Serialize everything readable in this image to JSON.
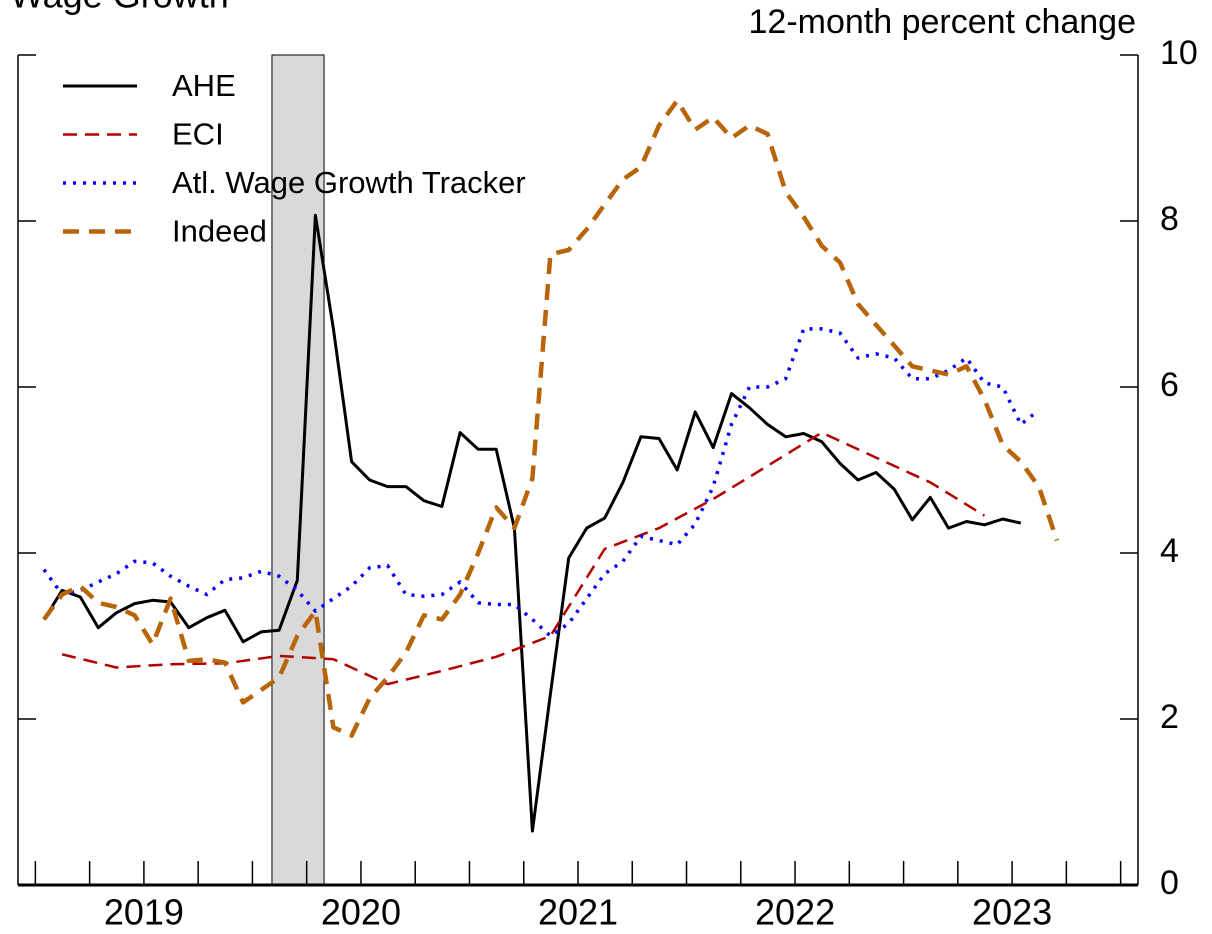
{
  "chart_data": {
    "type": "line",
    "title": "Wage Growth",
    "y_axis_label": "12-month percent change",
    "y_axis_side": "right",
    "legend": "upper left",
    "recession": [
      2020.05,
      2020.29
    ],
    "x": [
      2019,
      2019.083,
      2019.167,
      2019.25,
      2019.333,
      2019.417,
      2019.5,
      2019.583,
      2019.667,
      2019.75,
      2019.833,
      2019.917,
      2020,
      2020.083,
      2020.167,
      2020.25,
      2020.333,
      2020.417,
      2020.5,
      2020.583,
      2020.667,
      2020.75,
      2020.833,
      2020.917,
      2021,
      2021.083,
      2021.167,
      2021.25,
      2021.333,
      2021.417,
      2021.5,
      2021.583,
      2021.667,
      2021.75,
      2021.833,
      2021.917,
      2022,
      2022.083,
      2022.167,
      2022.25,
      2022.333,
      2022.417,
      2022.5,
      2022.583,
      2022.667,
      2022.75,
      2022.833,
      2022.917,
      2023,
      2023.083,
      2023.167,
      2023.25,
      2023.333,
      2023.417,
      2023.5,
      2023.583,
      2023.667
    ],
    "series": [
      {
        "name": "AHE",
        "color": "#000000",
        "style": "solid",
        "values": [
          3.2,
          3.55,
          3.47,
          3.1,
          3.28,
          3.39,
          3.43,
          3.41,
          3.1,
          3.22,
          3.31,
          2.93,
          3.05,
          3.07,
          3.67,
          8.07,
          6.7,
          5.1,
          4.88,
          4.8,
          4.8,
          4.63,
          4.56,
          5.45,
          5.25,
          5.25,
          4.3,
          0.65,
          2.3,
          3.94,
          4.3,
          4.42,
          4.85,
          5.4,
          5.38,
          5.0,
          5.7,
          5.27,
          5.92,
          5.75,
          5.55,
          5.4,
          5.44,
          5.34,
          5.08,
          4.88,
          4.97,
          4.77,
          4.4,
          4.67,
          4.3,
          4.38,
          4.34,
          4.41,
          4.36,
          null,
          null
        ]
      },
      {
        "name": "ECI",
        "color": "#b30000",
        "style": "dashed",
        "x": [
          2019.083,
          2019.333,
          2019.583,
          2019.833,
          2020.083,
          2020.333,
          2020.583,
          2020.833,
          2021.083,
          2021.333,
          2021.583,
          2021.833,
          2022.083,
          2022.333,
          2022.583,
          2022.833,
          2023.083,
          2023.333
        ],
        "values": [
          2.78,
          2.62,
          2.66,
          2.67,
          2.76,
          2.72,
          2.42,
          2.58,
          2.75,
          3.0,
          4.05,
          4.3,
          4.65,
          5.05,
          5.45,
          5.15,
          4.85,
          4.45
        ]
      },
      {
        "name": "Atl. Wage Growth Tracker",
        "color": "#0000ff",
        "style": "dotted",
        "values": [
          3.8,
          3.5,
          3.55,
          3.65,
          3.75,
          3.9,
          3.88,
          3.72,
          3.6,
          3.5,
          3.68,
          3.7,
          3.78,
          3.72,
          3.55,
          3.3,
          3.45,
          3.6,
          3.82,
          3.85,
          3.5,
          3.48,
          3.5,
          3.65,
          3.4,
          3.38,
          3.38,
          3.2,
          3.0,
          3.15,
          3.45,
          3.75,
          3.9,
          4.2,
          4.15,
          4.1,
          4.35,
          4.8,
          5.55,
          6.0,
          6.0,
          6.1,
          6.7,
          6.7,
          6.65,
          6.35,
          6.4,
          6.35,
          6.1,
          6.1,
          6.2,
          6.35,
          6.05,
          6.0,
          5.55,
          5.72,
          null
        ]
      },
      {
        "name": "Indeed",
        "color": "#b8650a",
        "style": "bold-dashed",
        "values": [
          3.2,
          3.5,
          3.6,
          3.4,
          3.35,
          3.25,
          2.9,
          3.45,
          2.7,
          2.72,
          2.68,
          2.2,
          2.35,
          2.5,
          3.0,
          3.3,
          1.9,
          1.8,
          2.25,
          2.5,
          2.8,
          3.25,
          3.2,
          3.5,
          4.0,
          4.55,
          4.3,
          4.9,
          7.6,
          7.65,
          7.9,
          8.2,
          8.5,
          8.65,
          9.15,
          9.45,
          9.1,
          9.25,
          9.0,
          9.15,
          9.05,
          8.35,
          8.05,
          7.7,
          7.5,
          7.0,
          6.75,
          6.5,
          6.25,
          6.2,
          6.15,
          6.25,
          5.85,
          5.3,
          5.1,
          4.8,
          4.15
        ]
      }
    ],
    "xlim": [
      2018.88,
      2024.04
    ],
    "xticks": [
      {
        "value": 2019.46,
        "label": "2019"
      },
      {
        "value": 2020.46,
        "label": "2020"
      },
      {
        "value": 2021.46,
        "label": "2021"
      },
      {
        "value": 2022.46,
        "label": "2022"
      },
      {
        "value": 2023.46,
        "label": "2023"
      }
    ],
    "x_minor_ticks": [
      2018.96,
      2019.21,
      2019.46,
      2019.71,
      2019.96,
      2020.21,
      2020.46,
      2020.71,
      2020.96,
      2021.21,
      2021.46,
      2021.71,
      2021.96,
      2022.21,
      2022.46,
      2022.71,
      2022.96,
      2023.21,
      2023.46,
      2023.71,
      2023.96
    ],
    "ylim": [
      0,
      10
    ],
    "yticks": [
      0,
      2,
      4,
      6,
      8,
      10
    ]
  }
}
